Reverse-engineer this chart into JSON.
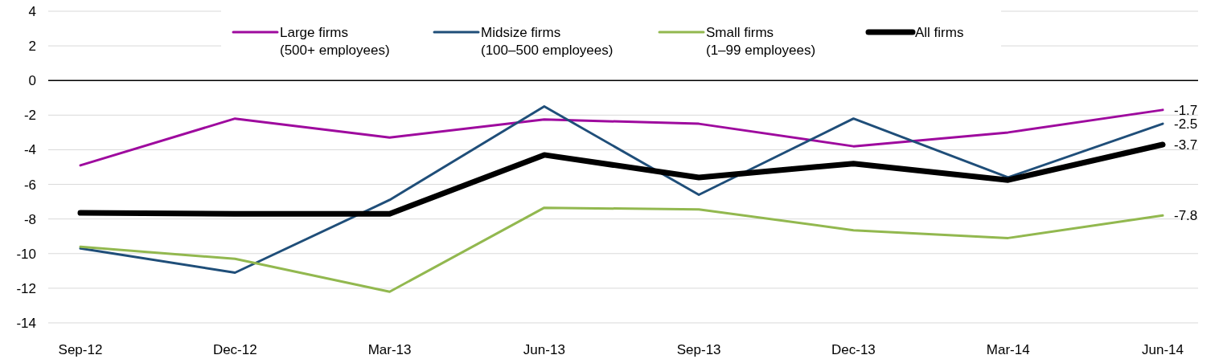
{
  "chart_data": {
    "type": "line",
    "categories": [
      "Sep-12",
      "Dec-12",
      "Mar-13",
      "Jun-13",
      "Sep-13",
      "Dec-13",
      "Mar-14",
      "Jun-14"
    ],
    "series": [
      {
        "name": "Large firms\n(500+ employees)",
        "color": "#9e0a9e",
        "values": [
          -4.9,
          -2.2,
          -3.3,
          -2.25,
          -2.5,
          -3.8,
          -3.0,
          -1.7
        ],
        "value_labels": [
          null,
          null,
          null,
          null,
          null,
          null,
          null,
          "-1.7"
        ]
      },
      {
        "name": "Midsize firms\n(100–500 employees)",
        "color": "#1f4e79",
        "values": [
          -9.7,
          -11.1,
          -6.9,
          -1.5,
          -6.6,
          -2.2,
          -5.6,
          -2.5
        ],
        "value_labels": [
          null,
          null,
          null,
          null,
          null,
          null,
          null,
          "-2.5"
        ]
      },
      {
        "name": "Small firms\n(1–99 employees)",
        "color": "#92b84f",
        "values": [
          -9.6,
          -10.3,
          -12.2,
          -7.35,
          -7.45,
          -8.65,
          -9.1,
          -7.8
        ],
        "value_labels": [
          null,
          null,
          null,
          null,
          null,
          null,
          null,
          "-7.8"
        ]
      },
      {
        "name": "All firms",
        "color": "#000000",
        "values": [
          -7.65,
          -7.7,
          -7.7,
          -4.3,
          -5.6,
          -4.8,
          -5.75,
          -3.7
        ],
        "value_labels": [
          null,
          null,
          null,
          null,
          null,
          null,
          null,
          "-3.7"
        ]
      }
    ],
    "ylim": [
      -14,
      4
    ],
    "yticks": [
      -14,
      -12,
      -10,
      -8,
      -6,
      -4,
      -2,
      0,
      2,
      4
    ],
    "grid": "y",
    "legend": "top",
    "marker": "none",
    "line_style": "solid"
  }
}
